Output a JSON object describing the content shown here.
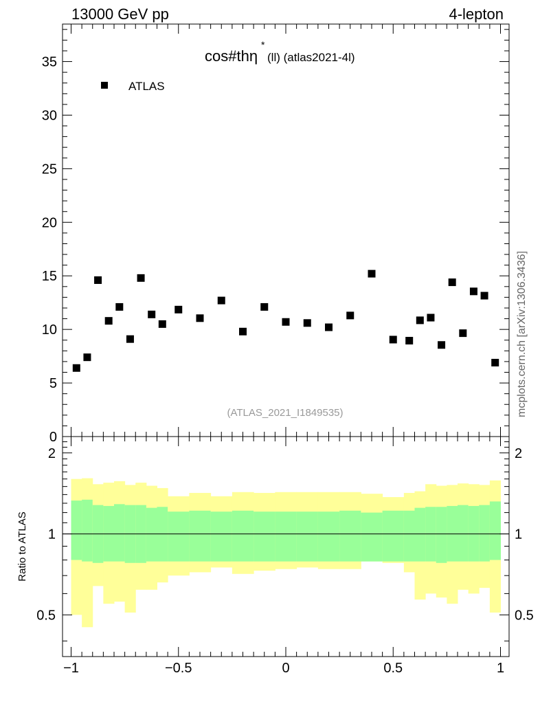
{
  "header": {
    "energy_label": "13000 GeV pp",
    "process_label": "4-lepton"
  },
  "plot": {
    "title_main": "cos#thη",
    "title_sup": "*",
    "title_sub": "(ll) (atlas2021-4l)",
    "legend_entry": "ATLAS",
    "analysis_id": "(ATLAS_2021_I1849535)",
    "side_label": "mcplots.cern.ch [arXiv:1306.3436]",
    "ratio_ylabel": "Ratio to ATLAS"
  },
  "colors": {
    "marker": "#000000",
    "band_inner": "#99ff99",
    "band_outer": "#ffff99",
    "side_label": "#666666",
    "analysis_id": "#999999"
  },
  "chart_data": [
    {
      "type": "scatter",
      "name": "main",
      "series": [
        {
          "name": "ATLAS",
          "x": [
            -0.975,
            -0.925,
            -0.875,
            -0.825,
            -0.775,
            -0.725,
            -0.675,
            -0.625,
            -0.575,
            -0.5,
            -0.4,
            -0.3,
            -0.2,
            -0.1,
            0.0,
            0.1,
            0.2,
            0.3,
            0.4,
            0.5,
            0.575,
            0.625,
            0.675,
            0.725,
            0.775,
            0.825,
            0.875,
            0.925,
            0.975
          ],
          "y": [
            6.4,
            7.4,
            14.6,
            10.8,
            12.1,
            9.1,
            14.8,
            11.4,
            10.5,
            11.85,
            11.05,
            12.7,
            9.8,
            12.1,
            10.7,
            10.6,
            10.2,
            11.3,
            15.2,
            9.05,
            8.95,
            10.85,
            11.1,
            8.55,
            14.4,
            9.65,
            13.55,
            13.15,
            6.9
          ]
        }
      ],
      "xlim": [
        -1.04,
        1.04
      ],
      "ylim": [
        0,
        38.5
      ],
      "yticks": [
        0,
        5,
        10,
        15,
        20,
        25,
        30,
        35
      ],
      "legend": "top-left"
    },
    {
      "type": "area",
      "name": "ratio",
      "ylabel": "Ratio to ATLAS",
      "bin_edges": [
        -1.0,
        -0.95,
        -0.9,
        -0.85,
        -0.8,
        -0.75,
        -0.7,
        -0.65,
        -0.6,
        -0.55,
        -0.45,
        -0.35,
        -0.25,
        -0.15,
        -0.05,
        0.05,
        0.15,
        0.25,
        0.35,
        0.45,
        0.55,
        0.6,
        0.65,
        0.7,
        0.75,
        0.8,
        0.85,
        0.9,
        0.95,
        1.0
      ],
      "inner_upper": [
        1.33,
        1.34,
        1.28,
        1.27,
        1.29,
        1.28,
        1.28,
        1.25,
        1.26,
        1.21,
        1.22,
        1.21,
        1.22,
        1.21,
        1.21,
        1.21,
        1.21,
        1.22,
        1.2,
        1.22,
        1.22,
        1.25,
        1.26,
        1.26,
        1.27,
        1.28,
        1.27,
        1.28,
        1.32
      ],
      "inner_lower": [
        0.8,
        0.79,
        0.78,
        0.79,
        0.79,
        0.78,
        0.78,
        0.79,
        0.79,
        0.79,
        0.79,
        0.79,
        0.79,
        0.79,
        0.79,
        0.79,
        0.79,
        0.79,
        0.79,
        0.79,
        0.79,
        0.79,
        0.79,
        0.78,
        0.79,
        0.79,
        0.79,
        0.79,
        0.8
      ],
      "outer_upper": [
        1.6,
        1.61,
        1.53,
        1.55,
        1.57,
        1.52,
        1.55,
        1.51,
        1.48,
        1.38,
        1.42,
        1.38,
        1.43,
        1.42,
        1.43,
        1.43,
        1.43,
        1.43,
        1.41,
        1.37,
        1.42,
        1.44,
        1.53,
        1.51,
        1.52,
        1.54,
        1.53,
        1.52,
        1.58
      ],
      "outer_lower": [
        0.5,
        0.45,
        0.64,
        0.55,
        0.56,
        0.51,
        0.62,
        0.62,
        0.66,
        0.7,
        0.72,
        0.75,
        0.71,
        0.73,
        0.74,
        0.75,
        0.74,
        0.74,
        0.79,
        0.78,
        0.72,
        0.57,
        0.6,
        0.58,
        0.55,
        0.62,
        0.6,
        0.63,
        0.51
      ],
      "reference": 1,
      "xlim": [
        -1.04,
        1.04
      ],
      "ylim": [
        0.35,
        2.3
      ],
      "yticks": [
        0.5,
        1,
        2
      ],
      "xticks": [
        -1,
        -0.5,
        0,
        0.5,
        1
      ],
      "xtick_labels": [
        "−1",
        "−0.5",
        "0",
        "0.5",
        "1"
      ]
    }
  ]
}
